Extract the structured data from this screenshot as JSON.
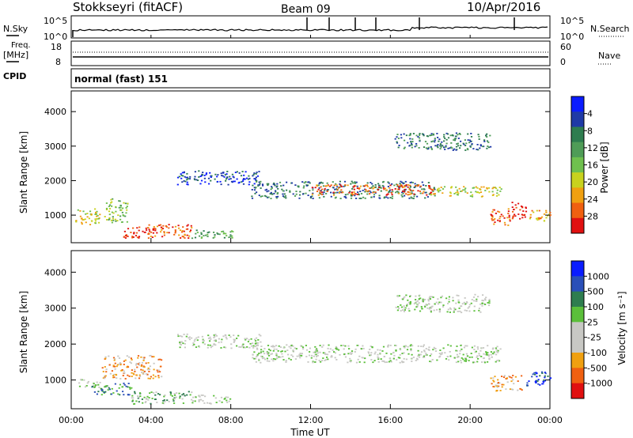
{
  "header": {
    "station": "Stokkseyri (fitACF)",
    "beam": "Beam 09",
    "date": "10/Apr/2016"
  },
  "left_labels": {
    "nsky": "N.Sky",
    "freq": "Freq.",
    "freq_unit": "[MHz]",
    "cpid": "CPID"
  },
  "right_labels": {
    "nsearch": "N.Search",
    "nave": "Nave"
  },
  "cpid_text": "normal (fast) 151",
  "noise_axis": {
    "top_left": "10^5",
    "bottom_left": "10^0",
    "top_right": "10^5",
    "bottom_right": "10^0"
  },
  "freq_axis": {
    "left_ticks": [
      "18",
      "8"
    ],
    "right_ticks": [
      "60",
      "0"
    ]
  },
  "x_axis": {
    "label": "Time UT",
    "ticks": [
      "00:00",
      "04:00",
      "08:00",
      "12:00",
      "16:00",
      "20:00",
      "00:00"
    ]
  },
  "colors": {
    "power": [
      "#0a1cff",
      "#1f3aa6",
      "#2e7d4f",
      "#4f9c57",
      "#6fc04e",
      "#c8d21e",
      "#f0a010",
      "#f06010",
      "#e01010"
    ],
    "velocity": [
      "#0a1cff",
      "#2a4fb8",
      "#2e7d4f",
      "#5bbf3a",
      "#c8c8c4",
      "#c8c8c4",
      "#f0a010",
      "#f06010",
      "#e01010"
    ]
  },
  "chart_data": [
    {
      "type": "heatmap",
      "name": "power",
      "xlabel": "",
      "ylabel": "Slant Range [km]",
      "xlim": [
        0,
        24
      ],
      "ylim": [
        200,
        4600
      ],
      "yticks": [
        "1000",
        "2000",
        "3000",
        "4000"
      ],
      "colorbar_label": "Power [dB]",
      "colorbar_ticks": [
        "4",
        "8",
        "12",
        "16",
        "20",
        "24",
        "28"
      ],
      "features": [
        {
          "t0": 0.2,
          "t1": 1.4,
          "r0": 700,
          "r1": 1200,
          "level": 5
        },
        {
          "t0": 1.6,
          "t1": 2.8,
          "r0": 800,
          "r1": 1500,
          "level": 4
        },
        {
          "t0": 2.6,
          "t1": 4.2,
          "r0": 350,
          "r1": 700,
          "level": 8
        },
        {
          "t0": 3.8,
          "t1": 6.0,
          "r0": 350,
          "r1": 750,
          "level": 7
        },
        {
          "t0": 6.0,
          "t1": 8.2,
          "r0": 350,
          "r1": 600,
          "level": 3
        },
        {
          "t0": 5.3,
          "t1": 9.5,
          "r0": 1900,
          "r1": 2300,
          "level": 1
        },
        {
          "t0": 9.0,
          "t1": 18.2,
          "r0": 1500,
          "r1": 2000,
          "level": 2
        },
        {
          "t0": 12.0,
          "t1": 18.2,
          "r0": 1600,
          "r1": 1900,
          "level": 7
        },
        {
          "t0": 18.0,
          "t1": 21.6,
          "r0": 1550,
          "r1": 1850,
          "level": 5
        },
        {
          "t0": 16.2,
          "t1": 21.0,
          "r0": 2900,
          "r1": 3400,
          "level": 2
        },
        {
          "t0": 21.0,
          "t1": 22.0,
          "r0": 700,
          "r1": 1200,
          "level": 7
        },
        {
          "t0": 22.0,
          "t1": 22.8,
          "r0": 900,
          "r1": 1400,
          "level": 8
        },
        {
          "t0": 22.8,
          "t1": 24.0,
          "r0": 850,
          "r1": 1150,
          "level": 6
        }
      ]
    },
    {
      "type": "heatmap",
      "name": "velocity",
      "xlabel": "Time UT",
      "ylabel": "Slant Range [km]",
      "xlim": [
        0,
        24
      ],
      "ylim": [
        200,
        4600
      ],
      "yticks": [
        "1000",
        "2000",
        "3000",
        "4000"
      ],
      "colorbar_label": "Velocity [m s⁻¹]",
      "colorbar_ticks": [
        "1000",
        "500",
        "100",
        "25",
        "-25",
        "-100",
        "-500",
        "-1000"
      ],
      "features": [
        {
          "t0": 0.3,
          "t1": 1.5,
          "r0": 800,
          "r1": 1050,
          "level": 4
        },
        {
          "t0": 1.5,
          "t1": 4.5,
          "r0": 1050,
          "r1": 1700,
          "level": 6
        },
        {
          "t0": 1.0,
          "t1": 3.0,
          "r0": 600,
          "r1": 950,
          "level": 2
        },
        {
          "t0": 3.0,
          "t1": 6.0,
          "r0": 350,
          "r1": 700,
          "level": 3
        },
        {
          "t0": 6.0,
          "t1": 8.0,
          "r0": 350,
          "r1": 600,
          "level": 4
        },
        {
          "t0": 5.3,
          "t1": 9.5,
          "r0": 1900,
          "r1": 2300,
          "level": 4
        },
        {
          "t0": 9.0,
          "t1": 21.5,
          "r0": 1500,
          "r1": 2000,
          "level": 4
        },
        {
          "t0": 16.2,
          "t1": 21.0,
          "r0": 2900,
          "r1": 3400,
          "level": 4
        },
        {
          "t0": 21.0,
          "t1": 22.6,
          "r0": 700,
          "r1": 1150,
          "level": 6
        },
        {
          "t0": 22.8,
          "t1": 24.0,
          "r0": 850,
          "r1": 1300,
          "level": 1
        }
      ]
    }
  ]
}
